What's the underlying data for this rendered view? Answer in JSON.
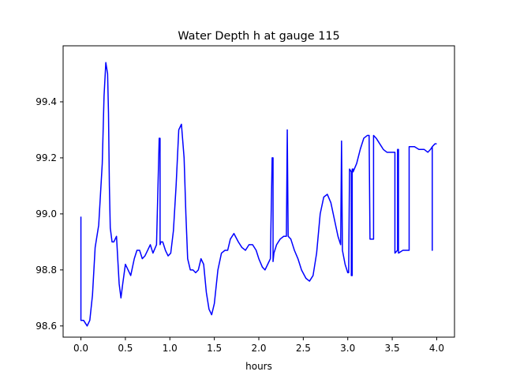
{
  "chart_data": {
    "type": "line",
    "title": "Water Depth h at gauge 115",
    "xlabel": "hours",
    "ylabel": "",
    "xlim": [
      -0.2,
      4.2
    ],
    "ylim": [
      98.56,
      99.6
    ],
    "xticks": [
      0.0,
      0.5,
      1.0,
      1.5,
      2.0,
      2.5,
      3.0,
      3.5,
      4.0
    ],
    "xtick_labels": [
      "0.0",
      "0.5",
      "1.0",
      "1.5",
      "2.0",
      "2.5",
      "3.0",
      "3.5",
      "4.0"
    ],
    "yticks": [
      98.6,
      98.8,
      99.0,
      99.2,
      99.4
    ],
    "ytick_labels": [
      "98.6",
      "98.8",
      "99.0",
      "99.2",
      "99.4"
    ],
    "grid": false,
    "series": [
      {
        "color": "#0000ff",
        "x": [
          0.0,
          0.0,
          0.03,
          0.07,
          0.1,
          0.13,
          0.16,
          0.2,
          0.24,
          0.26,
          0.28,
          0.3,
          0.31,
          0.32,
          0.33,
          0.35,
          0.37,
          0.4,
          0.43,
          0.45,
          0.47,
          0.5,
          0.53,
          0.56,
          0.6,
          0.63,
          0.66,
          0.69,
          0.72,
          0.75,
          0.78,
          0.81,
          0.85,
          0.88,
          0.89,
          0.89,
          0.9,
          0.92,
          0.95,
          0.98,
          1.01,
          1.04,
          1.07,
          1.1,
          1.13,
          1.16,
          1.18,
          1.2,
          1.23,
          1.26,
          1.29,
          1.32,
          1.35,
          1.38,
          1.41,
          1.44,
          1.47,
          1.5,
          1.54,
          1.58,
          1.62,
          1.65,
          1.68,
          1.72,
          1.77,
          1.81,
          1.85,
          1.89,
          1.93,
          1.97,
          2.0,
          2.04,
          2.07,
          2.1,
          2.13,
          2.15,
          2.16,
          2.16,
          2.17,
          2.2,
          2.24,
          2.28,
          2.31,
          2.32,
          2.32,
          2.33,
          2.36,
          2.4,
          2.44,
          2.48,
          2.53,
          2.57,
          2.61,
          2.65,
          2.69,
          2.73,
          2.77,
          2.81,
          2.85,
          2.89,
          2.92,
          2.93,
          2.93,
          2.94,
          2.97,
          3.0,
          3.01,
          3.02,
          3.02,
          3.04,
          3.04,
          3.05,
          3.05,
          3.06,
          3.06,
          3.1,
          3.14,
          3.18,
          3.22,
          3.24,
          3.25,
          3.25,
          3.29,
          3.29,
          3.32,
          3.36,
          3.4,
          3.44,
          3.48,
          3.53,
          3.53,
          3.56,
          3.56,
          3.57,
          3.57,
          3.62,
          3.66,
          3.69,
          3.69,
          3.75,
          3.8,
          3.86,
          3.9,
          3.93,
          3.95,
          3.95,
          3.95,
          3.98,
          4.0
        ],
        "y": [
          98.99,
          98.62,
          98.62,
          98.6,
          98.62,
          98.71,
          98.88,
          98.96,
          99.18,
          99.42,
          99.54,
          99.5,
          99.36,
          99.1,
          98.95,
          98.9,
          98.9,
          98.92,
          98.75,
          98.7,
          98.75,
          98.82,
          98.8,
          98.78,
          98.84,
          98.87,
          98.87,
          98.84,
          98.85,
          98.87,
          98.89,
          98.86,
          98.89,
          99.27,
          99.27,
          98.89,
          98.9,
          98.9,
          98.87,
          98.85,
          98.86,
          98.94,
          99.1,
          99.3,
          99.32,
          99.2,
          99.0,
          98.84,
          98.8,
          98.8,
          98.79,
          98.8,
          98.84,
          98.82,
          98.72,
          98.66,
          98.64,
          98.68,
          98.8,
          98.86,
          98.87,
          98.87,
          98.91,
          98.93,
          98.9,
          98.88,
          98.87,
          98.89,
          98.89,
          98.87,
          98.84,
          98.81,
          98.8,
          98.82,
          98.84,
          99.2,
          99.2,
          98.83,
          98.86,
          98.89,
          98.91,
          98.92,
          98.92,
          99.3,
          99.3,
          98.92,
          98.91,
          98.87,
          98.84,
          98.8,
          98.77,
          98.76,
          98.78,
          98.86,
          99.0,
          99.06,
          99.07,
          99.04,
          98.98,
          98.92,
          98.89,
          99.26,
          99.26,
          98.87,
          98.82,
          98.79,
          98.79,
          99.16,
          99.16,
          99.15,
          98.78,
          98.78,
          99.16,
          99.16,
          99.15,
          99.18,
          99.23,
          99.27,
          99.28,
          99.28,
          98.91,
          98.91,
          98.91,
          99.28,
          99.27,
          99.25,
          99.23,
          99.22,
          99.22,
          99.22,
          98.86,
          98.87,
          99.23,
          99.23,
          98.86,
          98.87,
          98.87,
          98.87,
          99.24,
          99.24,
          99.23,
          99.23,
          99.22,
          99.23,
          99.24,
          98.87,
          99.24,
          99.25,
          99.25
        ]
      }
    ]
  }
}
